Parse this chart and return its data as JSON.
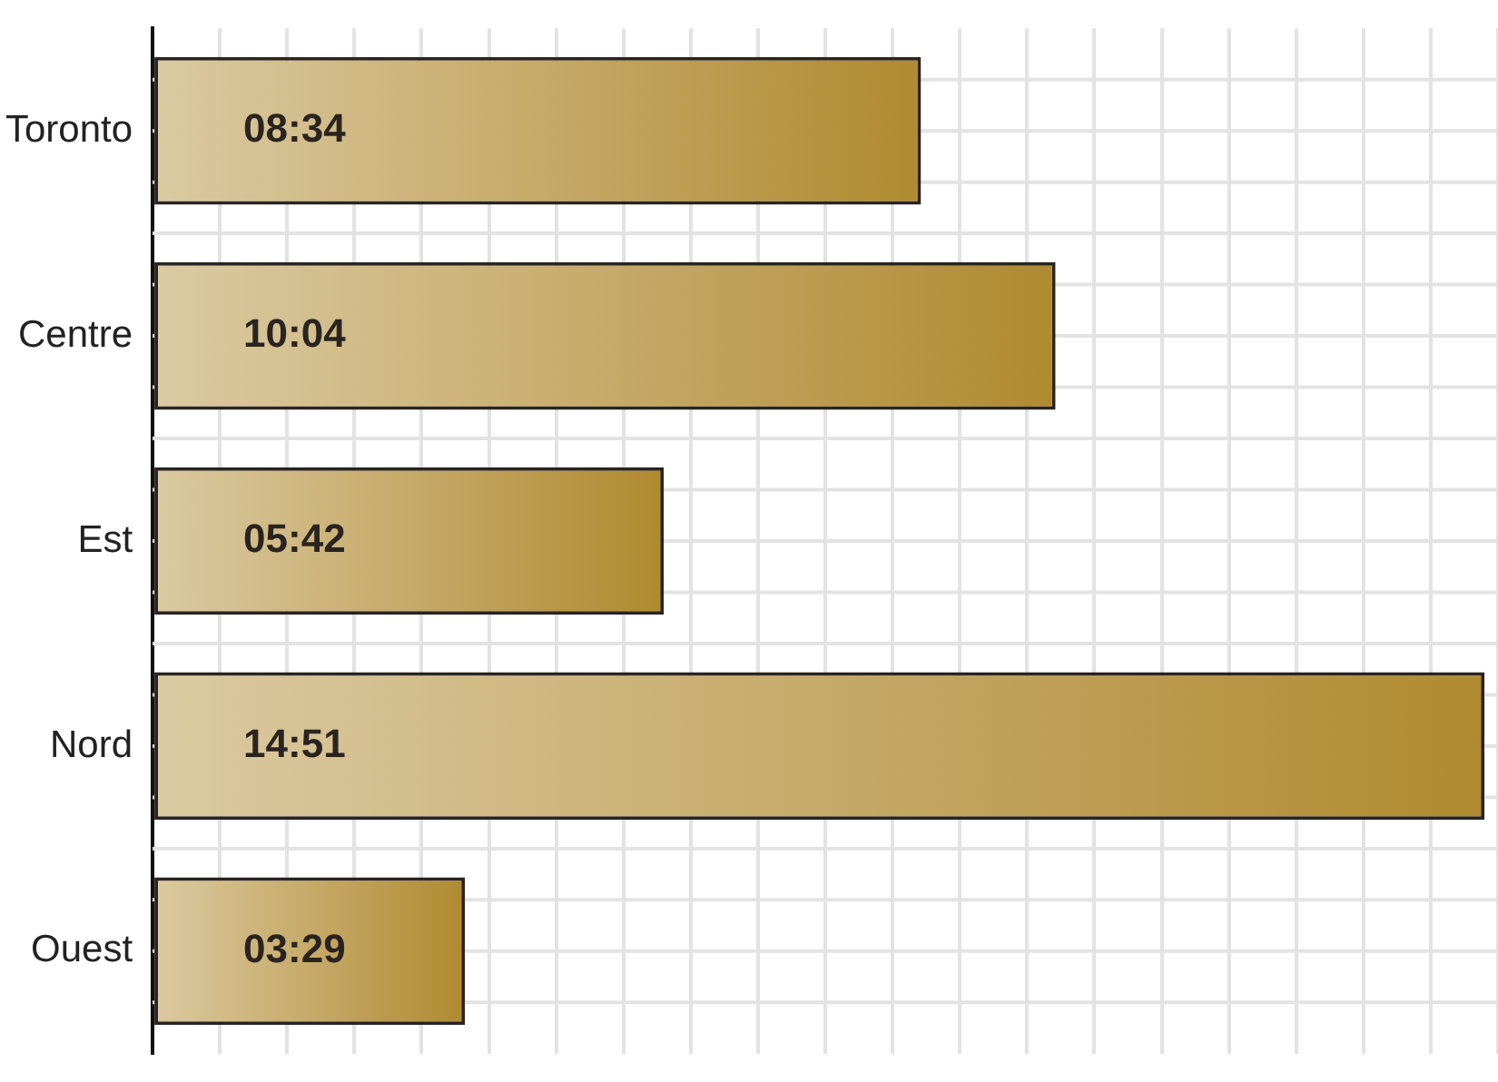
{
  "chart_data": {
    "type": "bar",
    "orientation": "horizontal",
    "categories": [
      "Toronto",
      "Centre",
      "Est",
      "Nord",
      "Ouest"
    ],
    "values": [
      8.567,
      10.067,
      5.7,
      14.85,
      3.483
    ],
    "value_labels": [
      "08:34",
      "10:04",
      "05:42",
      "14:51",
      "03:29"
    ],
    "color": "#b08a30",
    "grid": true,
    "tick_labels": "y"
  }
}
